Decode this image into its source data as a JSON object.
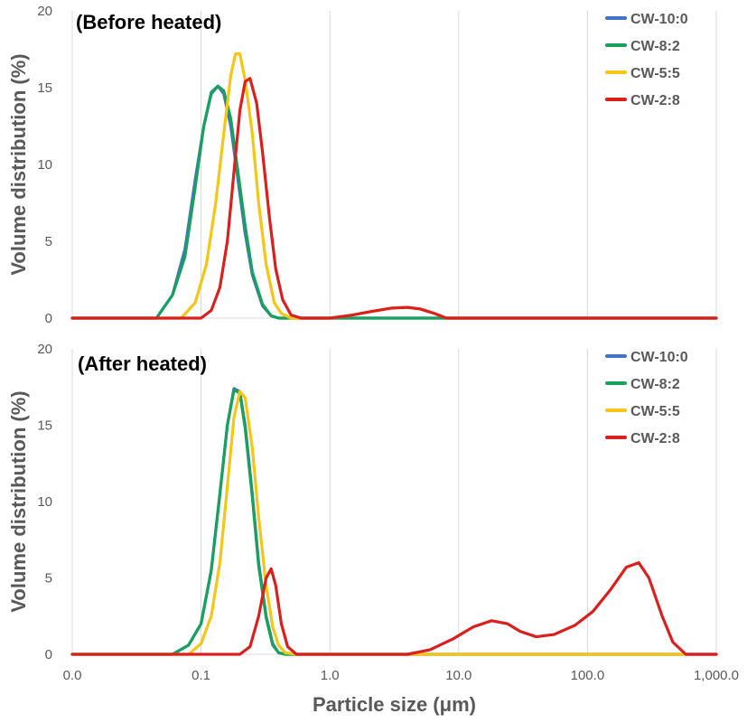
{
  "chart_data": [
    {
      "type": "line",
      "title": "(Before heated)",
      "xlabel": "",
      "ylabel": "Volume distribution (%)",
      "xscale": "log",
      "xlim": [
        0.01,
        1000
      ],
      "ylim": [
        0,
        20
      ],
      "xticks": [
        0.01,
        0.1,
        1,
        10,
        100,
        1000
      ],
      "xtick_labels": [
        "0.0",
        "0.1",
        "1.0",
        "10.0",
        "100.0",
        "1,000.0"
      ],
      "show_xtick_labels": false,
      "yticks": [
        0,
        5,
        10,
        15,
        20
      ],
      "ytick_labels": [
        "0",
        "5",
        "10",
        "15",
        "20"
      ],
      "grid": "vertical",
      "legend_position": "top-right",
      "series": [
        {
          "name": "CW-10:0",
          "color": "#4472c4",
          "x": [
            0.01,
            0.045,
            0.06,
            0.075,
            0.09,
            0.105,
            0.12,
            0.135,
            0.15,
            0.17,
            0.19,
            0.22,
            0.25,
            0.3,
            0.35,
            0.4,
            1000
          ],
          "y": [
            0,
            0,
            1.5,
            4.5,
            9.0,
            12.5,
            14.6,
            15.1,
            14.6,
            12.5,
            9.5,
            5.5,
            2.8,
            0.8,
            0.15,
            0,
            0
          ]
        },
        {
          "name": "CW-8:2",
          "color": "#1aa05e",
          "x": [
            0.01,
            0.045,
            0.06,
            0.075,
            0.09,
            0.105,
            0.12,
            0.135,
            0.15,
            0.17,
            0.19,
            0.22,
            0.25,
            0.3,
            0.35,
            0.4,
            1000
          ],
          "y": [
            0,
            0,
            1.5,
            4.0,
            8.5,
            12.5,
            14.7,
            15.1,
            14.8,
            13.0,
            10.0,
            6.0,
            3.0,
            0.9,
            0.15,
            0,
            0
          ]
        },
        {
          "name": "CW-5:5",
          "color": "#f5c518",
          "x": [
            0.01,
            0.07,
            0.09,
            0.11,
            0.13,
            0.15,
            0.17,
            0.185,
            0.2,
            0.22,
            0.25,
            0.28,
            0.32,
            0.37,
            0.42,
            0.5,
            1.0,
            1.5,
            2.0,
            3.0,
            4.0,
            5.0,
            6.5,
            8.0,
            1000
          ],
          "y": [
            0,
            0,
            1.0,
            3.5,
            7.5,
            12.0,
            15.8,
            17.2,
            17.2,
            15.5,
            12.0,
            7.5,
            3.5,
            1.0,
            0.3,
            0,
            0,
            0.2,
            0.4,
            0.65,
            0.7,
            0.6,
            0.3,
            0,
            0
          ]
        },
        {
          "name": "CW-2:8",
          "color": "#d9201f",
          "x": [
            0.01,
            0.1,
            0.12,
            0.14,
            0.16,
            0.18,
            0.2,
            0.22,
            0.24,
            0.27,
            0.3,
            0.34,
            0.38,
            0.43,
            0.5,
            0.6,
            1.0,
            1.5,
            2.0,
            3.0,
            4.0,
            5.0,
            6.5,
            8.0,
            1000
          ],
          "y": [
            0,
            0,
            0.5,
            2.0,
            5.0,
            9.5,
            13.5,
            15.4,
            15.6,
            14.0,
            10.8,
            6.5,
            3.2,
            1.2,
            0.2,
            0,
            0,
            0.2,
            0.4,
            0.65,
            0.7,
            0.6,
            0.3,
            0,
            0
          ]
        }
      ]
    },
    {
      "type": "line",
      "title": "(After heated)",
      "xlabel": "Particle size (μm)",
      "ylabel": "Volume distribution (%)",
      "xscale": "log",
      "xlim": [
        0.01,
        1000
      ],
      "ylim": [
        0,
        20
      ],
      "xticks": [
        0.01,
        0.1,
        1,
        10,
        100,
        1000
      ],
      "xtick_labels": [
        "0.0",
        "0.1",
        "1.0",
        "10.0",
        "100.0",
        "1,000.0"
      ],
      "show_xtick_labels": true,
      "yticks": [
        0,
        5,
        10,
        15,
        20
      ],
      "ytick_labels": [
        "0",
        "5",
        "10",
        "15",
        "20"
      ],
      "grid": "vertical",
      "legend_position": "top-right",
      "series": [
        {
          "name": "CW-10:0",
          "color": "#4472c4",
          "x": [
            0.01,
            0.06,
            0.08,
            0.1,
            0.12,
            0.14,
            0.16,
            0.18,
            0.2,
            0.22,
            0.25,
            0.28,
            0.32,
            0.36,
            0.4,
            0.45,
            1000
          ],
          "y": [
            0,
            0,
            0.6,
            2.0,
            5.5,
            10.5,
            15.0,
            17.4,
            17.2,
            15.0,
            10.5,
            6.0,
            2.5,
            0.7,
            0.1,
            0,
            0
          ]
        },
        {
          "name": "CW-8:2",
          "color": "#1aa05e",
          "x": [
            0.01,
            0.06,
            0.08,
            0.1,
            0.12,
            0.14,
            0.16,
            0.18,
            0.2,
            0.22,
            0.25,
            0.28,
            0.32,
            0.36,
            0.4,
            0.45,
            1000
          ],
          "y": [
            0,
            0,
            0.6,
            2.0,
            5.5,
            10.5,
            15.0,
            17.3,
            17.1,
            14.8,
            10.3,
            5.8,
            2.4,
            0.6,
            0.1,
            0,
            0
          ]
        },
        {
          "name": "CW-5:5",
          "color": "#f5c518",
          "x": [
            0.01,
            0.08,
            0.1,
            0.12,
            0.14,
            0.16,
            0.18,
            0.2,
            0.22,
            0.25,
            0.28,
            0.32,
            0.36,
            0.4,
            0.45,
            0.55,
            600
          ],
          "y": [
            0,
            0,
            0.7,
            2.5,
            6.0,
            11.0,
            15.5,
            17.2,
            16.8,
            13.5,
            9.0,
            4.5,
            1.8,
            0.6,
            0.1,
            0,
            0
          ]
        },
        {
          "name": "CW-2:8",
          "color": "#d9201f",
          "x": [
            0.01,
            0.2,
            0.24,
            0.28,
            0.32,
            0.35,
            0.38,
            0.42,
            0.47,
            0.55,
            4.0,
            6.0,
            9.0,
            13.0,
            18.0,
            24.0,
            30.0,
            40.0,
            55.0,
            80.0,
            110.0,
            150.0,
            200.0,
            250.0,
            300.0,
            380.0,
            460.0,
            580.0,
            1000
          ],
          "y": [
            0,
            0,
            0.5,
            2.5,
            5.0,
            5.6,
            4.5,
            2.0,
            0.5,
            0,
            0,
            0.3,
            1.0,
            1.8,
            2.2,
            2.0,
            1.5,
            1.15,
            1.3,
            1.9,
            2.8,
            4.2,
            5.7,
            6.0,
            5.0,
            2.5,
            0.8,
            0,
            0
          ]
        }
      ]
    }
  ]
}
